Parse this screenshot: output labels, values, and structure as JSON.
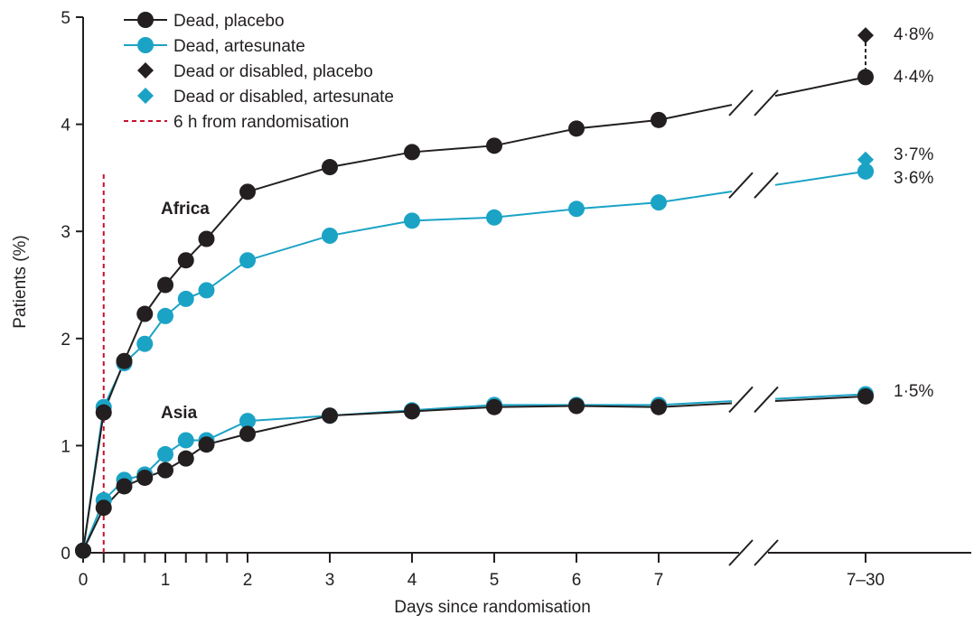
{
  "chart_data": {
    "type": "line",
    "xlabel": "Days since randomisation",
    "ylabel": "Patients (%)",
    "ylim": [
      0,
      5
    ],
    "yticks": [
      "0",
      "1",
      "2",
      "3",
      "4",
      "5"
    ],
    "x": [
      0,
      0.25,
      0.5,
      0.75,
      1,
      1.25,
      1.5,
      2,
      3,
      4,
      5,
      6,
      7,
      "7–30"
    ],
    "xtick_labels": [
      "0",
      "1",
      "2",
      "3",
      "4",
      "5",
      "6",
      "7",
      "7–30"
    ],
    "grid": false,
    "legend_position": "top-left",
    "colors": {
      "placebo": "#231f20",
      "artesunate": "#1ba3c6",
      "marker_vline": "#c8102e"
    },
    "legend": [
      "Dead, placebo",
      "Dead, artesunate",
      "Dead or disabled, placebo",
      "Dead or disabled, artesunate",
      "6 h from randomisation"
    ],
    "reference_line": {
      "x": 0.25,
      "label": "6 h from randomisation"
    },
    "groups": [
      {
        "name": "Africa",
        "series": [
          {
            "name": "Dead, placebo",
            "values": [
              0.02,
              1.31,
              1.79,
              2.23,
              2.5,
              2.73,
              2.93,
              3.37,
              3.6,
              3.74,
              3.8,
              3.96,
              4.04,
              4.44
            ]
          },
          {
            "name": "Dead, artesunate",
            "values": [
              0.02,
              1.36,
              1.77,
              1.95,
              2.21,
              2.37,
              2.45,
              2.73,
              2.96,
              3.1,
              3.13,
              3.21,
              3.27,
              3.56
            ]
          }
        ],
        "disabled": [
          {
            "name": "Dead or disabled, placebo",
            "value": 4.83
          },
          {
            "name": "Dead or disabled, artesunate",
            "value": 3.67
          }
        ],
        "end_labels": [
          "4·8%",
          "4·4%",
          "3·7%",
          "3·6%"
        ]
      },
      {
        "name": "Asia",
        "series": [
          {
            "name": "Dead, placebo",
            "values": [
              0.02,
              0.42,
              0.62,
              0.7,
              0.77,
              0.88,
              1.01,
              1.11,
              1.28,
              1.32,
              1.36,
              1.37,
              1.36,
              1.46
            ]
          },
          {
            "name": "Dead, artesunate",
            "values": [
              0.02,
              0.49,
              0.68,
              0.73,
              0.92,
              1.05,
              1.05,
              1.23,
              1.28,
              1.33,
              1.38,
              1.38,
              1.38,
              1.48
            ]
          }
        ],
        "end_labels": [
          "1·5%"
        ]
      }
    ]
  }
}
